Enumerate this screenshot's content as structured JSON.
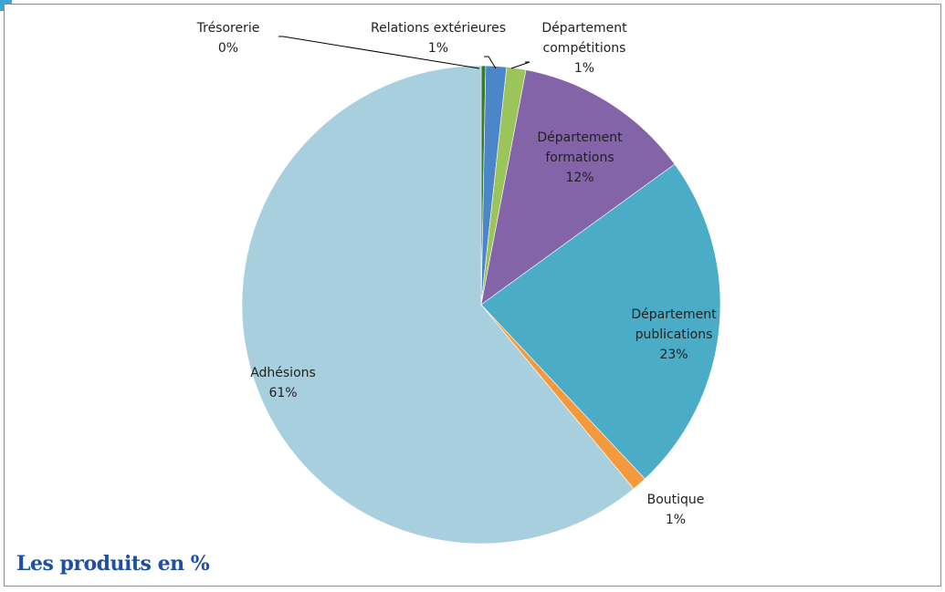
{
  "chart_data": {
    "type": "pie",
    "title": "",
    "caption": "Les produits en %",
    "slices": [
      {
        "label": "Trésorerie",
        "percent_label": "0%",
        "value": 0.3,
        "color": "#3a7a2a"
      },
      {
        "label": "Relations extérieures",
        "percent_label": "1%",
        "value": 1.4,
        "color": "#4a86c8"
      },
      {
        "label": "Département compétitions",
        "percent_label": "1%",
        "value": 1.3,
        "color": "#9bc45a"
      },
      {
        "label": "Département formations",
        "percent_label": "12%",
        "value": 12.0,
        "color": "#8464a8"
      },
      {
        "label": "Département publications",
        "percent_label": "23%",
        "value": 23.0,
        "color": "#4aacc6"
      },
      {
        "label": "Boutique",
        "percent_label": "1%",
        "value": 1.0,
        "color": "#f59a3c"
      },
      {
        "label": "Adhésions",
        "percent_label": "61%",
        "value": 61.0,
        "color": "#a8cfdd"
      }
    ],
    "legend": "none"
  }
}
